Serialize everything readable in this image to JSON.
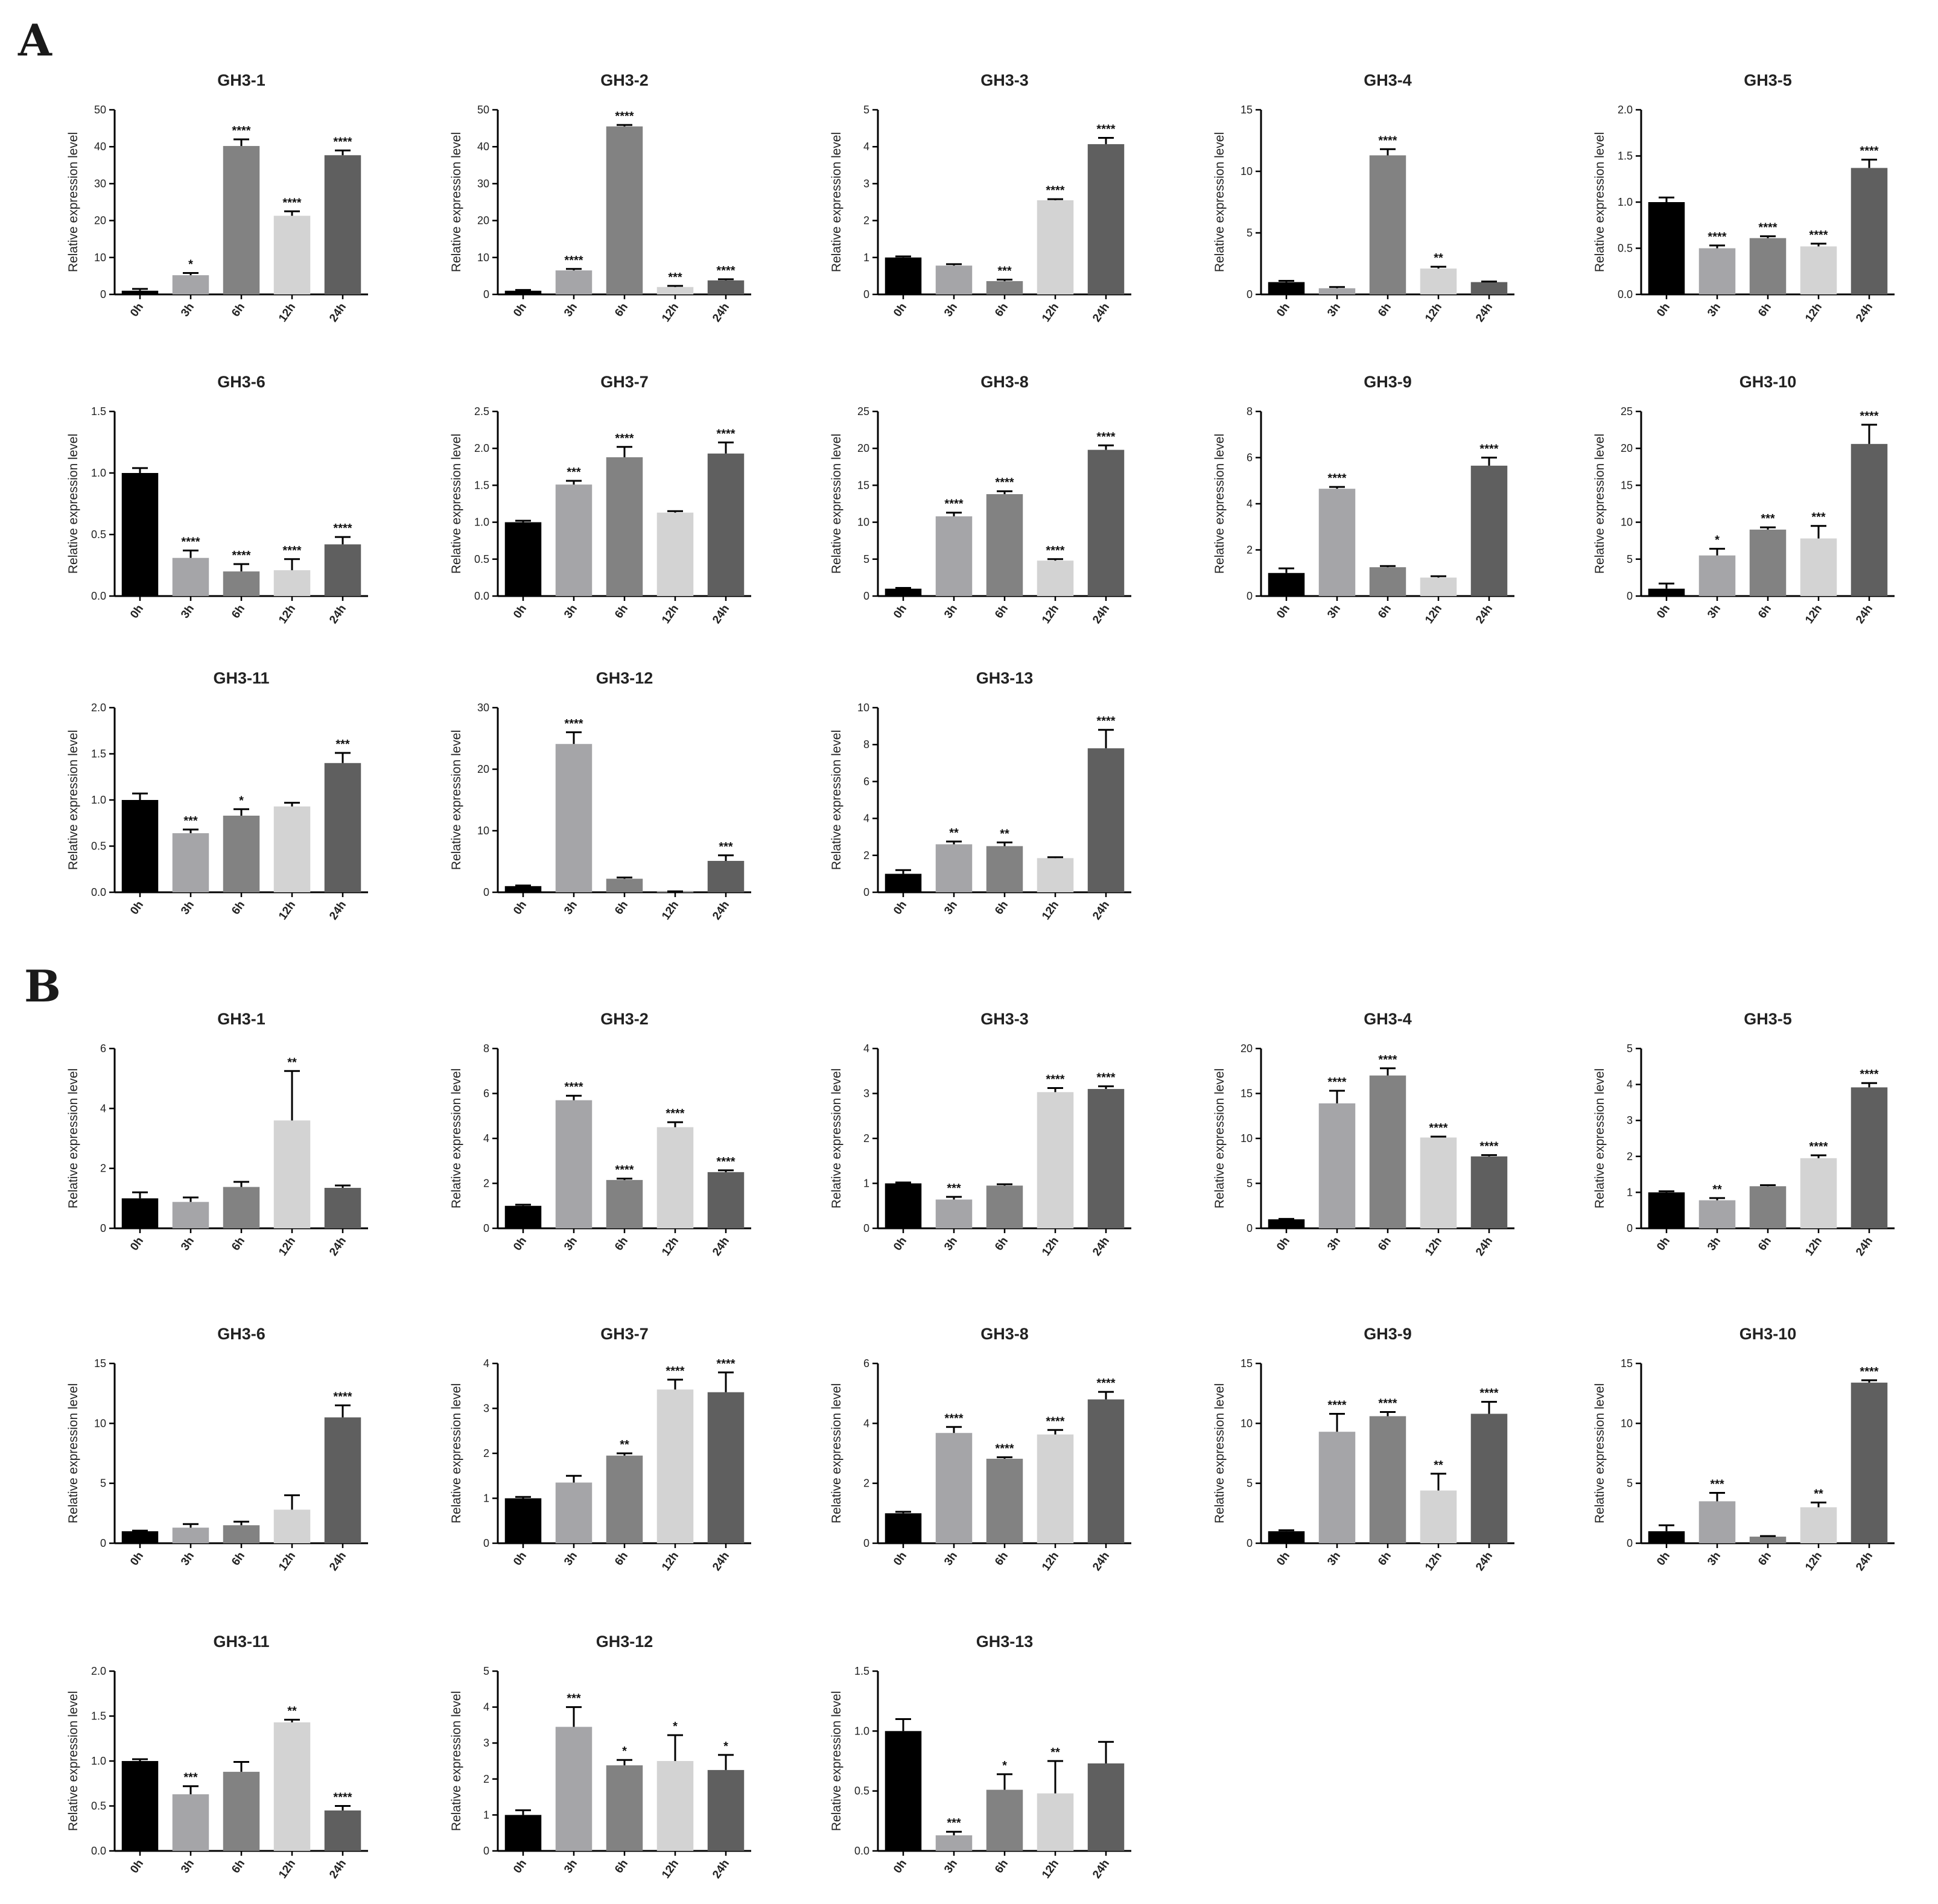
{
  "panel_labels": [
    "A",
    "B"
  ],
  "chart_data": [
    {
      "panel": "A",
      "type": "bar",
      "title": "GH3-1",
      "ylabel": "Relative expression level",
      "categories": [
        "0h",
        "3h",
        "6h",
        "12h",
        "24h"
      ],
      "ylim": [
        0,
        50
      ],
      "yticks": [
        0,
        10,
        20,
        30,
        40,
        50
      ],
      "values": [
        1.0,
        5.2,
        40.2,
        21.3,
        37.7
      ],
      "errors": [
        0.5,
        0.6,
        1.8,
        1.2,
        1.3
      ],
      "significance": [
        "",
        "*",
        "****",
        "****",
        "****"
      ]
    },
    {
      "panel": "A",
      "type": "bar",
      "title": "GH3-2",
      "ylabel": "Relative expression level",
      "categories": [
        "0h",
        "3h",
        "6h",
        "12h",
        "24h"
      ],
      "ylim": [
        0,
        50
      ],
      "yticks": [
        0,
        10,
        20,
        30,
        40,
        50
      ],
      "values": [
        1.0,
        6.5,
        45.5,
        2.0,
        3.8
      ],
      "errors": [
        0.2,
        0.4,
        0.4,
        0.3,
        0.3
      ],
      "significance": [
        "",
        "****",
        "****",
        "***",
        "****"
      ]
    },
    {
      "panel": "A",
      "type": "bar",
      "title": "GH3-3",
      "ylabel": "Relative expression level",
      "categories": [
        "0h",
        "3h",
        "6h",
        "12h",
        "24h"
      ],
      "ylim": [
        0,
        5
      ],
      "yticks": [
        0,
        1,
        2,
        3,
        4,
        5
      ],
      "values": [
        1.0,
        0.78,
        0.36,
        2.55,
        4.07
      ],
      "errors": [
        0.03,
        0.04,
        0.04,
        0.03,
        0.17
      ],
      "significance": [
        "",
        "",
        "***",
        "****",
        "****"
      ]
    },
    {
      "panel": "A",
      "type": "bar",
      "title": "GH3-4",
      "ylabel": "Relative expression level",
      "categories": [
        "0h",
        "3h",
        "6h",
        "12h",
        "24h"
      ],
      "ylim": [
        0,
        15
      ],
      "yticks": [
        0,
        5,
        10,
        15
      ],
      "values": [
        1.0,
        0.5,
        11.3,
        2.1,
        1.0
      ],
      "errors": [
        0.1,
        0.1,
        0.5,
        0.15,
        0.05
      ],
      "significance": [
        "",
        "",
        "****",
        "**",
        ""
      ]
    },
    {
      "panel": "A",
      "type": "bar",
      "title": "GH3-5",
      "ylabel": "Relative expression level",
      "categories": [
        "0h",
        "3h",
        "6h",
        "12h",
        "24h"
      ],
      "ylim": [
        0,
        2.0
      ],
      "yticks": [
        0,
        0.5,
        1.0,
        1.5,
        2.0
      ],
      "values": [
        1.0,
        0.5,
        0.61,
        0.52,
        1.37
      ],
      "errors": [
        0.05,
        0.03,
        0.02,
        0.03,
        0.09
      ],
      "significance": [
        "",
        "****",
        "****",
        "****",
        "****"
      ]
    },
    {
      "panel": "A",
      "type": "bar",
      "title": "GH3-6",
      "ylabel": "Relative expression level",
      "categories": [
        "0h",
        "3h",
        "6h",
        "12h",
        "24h"
      ],
      "ylim": [
        0,
        1.5
      ],
      "yticks": [
        0,
        0.5,
        1.0,
        1.5
      ],
      "values": [
        1.0,
        0.31,
        0.2,
        0.21,
        0.42
      ],
      "errors": [
        0.04,
        0.06,
        0.06,
        0.09,
        0.06
      ],
      "significance": [
        "",
        "****",
        "****",
        "****",
        "****"
      ]
    },
    {
      "panel": "A",
      "type": "bar",
      "title": "GH3-7",
      "ylabel": "Relative expression level",
      "categories": [
        "0h",
        "3h",
        "6h",
        "12h",
        "24h"
      ],
      "ylim": [
        0,
        2.5
      ],
      "yticks": [
        0,
        0.5,
        1.0,
        1.5,
        2.0,
        2.5
      ],
      "values": [
        1.0,
        1.51,
        1.88,
        1.13,
        1.93
      ],
      "errors": [
        0.02,
        0.05,
        0.14,
        0.02,
        0.15
      ],
      "significance": [
        "",
        "***",
        "****",
        "",
        "****"
      ]
    },
    {
      "panel": "A",
      "type": "bar",
      "title": "GH3-8",
      "ylabel": "Relative expression level",
      "categories": [
        "0h",
        "3h",
        "6h",
        "12h",
        "24h"
      ],
      "ylim": [
        0,
        25
      ],
      "yticks": [
        0,
        5,
        10,
        15,
        20,
        25
      ],
      "values": [
        1.0,
        10.8,
        13.8,
        4.8,
        19.8
      ],
      "errors": [
        0.1,
        0.5,
        0.4,
        0.2,
        0.6
      ],
      "significance": [
        "",
        "****",
        "****",
        "****",
        "****"
      ]
    },
    {
      "panel": "A",
      "type": "bar",
      "title": "GH3-9",
      "ylabel": "Relative expression level",
      "categories": [
        "0h",
        "3h",
        "6h",
        "12h",
        "24h"
      ],
      "ylim": [
        0,
        8
      ],
      "yticks": [
        0,
        2,
        4,
        6,
        8
      ],
      "values": [
        1.0,
        4.65,
        1.25,
        0.8,
        5.65
      ],
      "errors": [
        0.2,
        0.08,
        0.05,
        0.06,
        0.35
      ],
      "significance": [
        "",
        "****",
        "",
        "",
        "****"
      ]
    },
    {
      "panel": "A",
      "type": "bar",
      "title": "GH3-10",
      "ylabel": "Relative expression level",
      "categories": [
        "0h",
        "3h",
        "6h",
        "12h",
        "24h"
      ],
      "ylim": [
        0,
        25
      ],
      "yticks": [
        0,
        5,
        10,
        15,
        20,
        25
      ],
      "values": [
        1.0,
        5.5,
        9.0,
        7.8,
        20.6
      ],
      "errors": [
        0.7,
        0.9,
        0.3,
        1.7,
        2.6
      ],
      "significance": [
        "",
        "*",
        "***",
        "***",
        "****"
      ]
    },
    {
      "panel": "A",
      "type": "bar",
      "title": "GH3-11",
      "ylabel": "Relative expression level",
      "categories": [
        "0h",
        "3h",
        "6h",
        "12h",
        "24h"
      ],
      "ylim": [
        0,
        2.0
      ],
      "yticks": [
        0,
        0.5,
        1.0,
        1.5,
        2.0
      ],
      "values": [
        1.0,
        0.64,
        0.83,
        0.93,
        1.4
      ],
      "errors": [
        0.07,
        0.04,
        0.07,
        0.04,
        0.11
      ],
      "significance": [
        "",
        "***",
        "*",
        "",
        "***"
      ]
    },
    {
      "panel": "A",
      "type": "bar",
      "title": "GH3-12",
      "ylabel": "Relative expression level",
      "categories": [
        "0h",
        "3h",
        "6h",
        "12h",
        "24h"
      ],
      "ylim": [
        0,
        30
      ],
      "yticks": [
        0,
        10,
        20,
        30
      ],
      "values": [
        1.0,
        24.1,
        2.2,
        0.1,
        5.1
      ],
      "errors": [
        0.1,
        1.9,
        0.2,
        0.05,
        0.9
      ],
      "significance": [
        "",
        "****",
        "",
        "",
        "***"
      ]
    },
    {
      "panel": "A",
      "type": "bar",
      "title": "GH3-13",
      "ylabel": "Relative expression level",
      "categories": [
        "0h",
        "3h",
        "6h",
        "12h",
        "24h"
      ],
      "ylim": [
        0,
        10
      ],
      "yticks": [
        0,
        2,
        4,
        6,
        8,
        10
      ],
      "values": [
        1.0,
        2.6,
        2.5,
        1.85,
        7.8
      ],
      "errors": [
        0.2,
        0.15,
        0.2,
        0.05,
        1.0
      ],
      "significance": [
        "",
        "**",
        "**",
        "",
        "****"
      ]
    },
    {
      "panel": "B",
      "type": "bar",
      "title": "GH3-1",
      "ylabel": "Relative expression level",
      "categories": [
        "0h",
        "3h",
        "6h",
        "12h",
        "24h"
      ],
      "ylim": [
        0,
        6
      ],
      "yticks": [
        0,
        2,
        4,
        6
      ],
      "values": [
        1.0,
        0.88,
        1.38,
        3.6,
        1.35
      ],
      "errors": [
        0.2,
        0.15,
        0.17,
        1.65,
        0.08
      ],
      "significance": [
        "",
        "",
        "",
        "**",
        ""
      ]
    },
    {
      "panel": "B",
      "type": "bar",
      "title": "GH3-2",
      "ylabel": "Relative expression level",
      "categories": [
        "0h",
        "3h",
        "6h",
        "12h",
        "24h"
      ],
      "ylim": [
        0,
        8
      ],
      "yticks": [
        0,
        2,
        4,
        6,
        8
      ],
      "values": [
        1.0,
        5.7,
        2.15,
        4.5,
        2.5
      ],
      "errors": [
        0.05,
        0.2,
        0.06,
        0.22,
        0.08
      ],
      "significance": [
        "",
        "****",
        "****",
        "****",
        "****"
      ]
    },
    {
      "panel": "B",
      "type": "bar",
      "title": "GH3-3",
      "ylabel": "Relative expression level",
      "categories": [
        "0h",
        "3h",
        "6h",
        "12h",
        "24h"
      ],
      "ylim": [
        0,
        4
      ],
      "yticks": [
        0,
        1,
        2,
        3,
        4
      ],
      "values": [
        1.0,
        0.64,
        0.95,
        3.03,
        3.1
      ],
      "errors": [
        0.02,
        0.06,
        0.03,
        0.09,
        0.06
      ],
      "significance": [
        "",
        "***",
        "",
        "****",
        "****"
      ]
    },
    {
      "panel": "B",
      "type": "bar",
      "title": "GH3-4",
      "ylabel": "Relative expression level",
      "categories": [
        "0h",
        "3h",
        "6h",
        "12h",
        "24h"
      ],
      "ylim": [
        0,
        20
      ],
      "yticks": [
        0,
        5,
        10,
        15,
        20
      ],
      "values": [
        1.0,
        13.9,
        17.0,
        10.1,
        8.0
      ],
      "errors": [
        0.05,
        1.4,
        0.8,
        0.1,
        0.15
      ],
      "significance": [
        "",
        "****",
        "****",
        "****",
        "****"
      ]
    },
    {
      "panel": "B",
      "type": "bar",
      "title": "GH3-5",
      "ylabel": "Relative expression level",
      "categories": [
        "0h",
        "3h",
        "6h",
        "12h",
        "24h"
      ],
      "ylim": [
        0,
        5
      ],
      "yticks": [
        0,
        1,
        2,
        3,
        4,
        5
      ],
      "values": [
        1.0,
        0.78,
        1.17,
        1.95,
        3.92
      ],
      "errors": [
        0.03,
        0.06,
        0.03,
        0.08,
        0.12
      ],
      "significance": [
        "",
        "**",
        "",
        "****",
        "****"
      ]
    },
    {
      "panel": "B",
      "type": "bar",
      "title": "GH3-6",
      "ylabel": "Relative expression level",
      "categories": [
        "0h",
        "3h",
        "6h",
        "12h",
        "24h"
      ],
      "ylim": [
        0,
        15
      ],
      "yticks": [
        0,
        5,
        10,
        15
      ],
      "values": [
        1.0,
        1.3,
        1.5,
        2.8,
        10.5
      ],
      "errors": [
        0.05,
        0.3,
        0.3,
        1.2,
        1.0
      ],
      "significance": [
        "",
        "",
        "",
        "",
        "****"
      ]
    },
    {
      "panel": "B",
      "type": "bar",
      "title": "GH3-7",
      "ylabel": "Relative expression level",
      "categories": [
        "0h",
        "3h",
        "6h",
        "12h",
        "24h"
      ],
      "ylim": [
        0,
        4
      ],
      "yticks": [
        0,
        1,
        2,
        3,
        4
      ],
      "values": [
        1.0,
        1.35,
        1.95,
        3.42,
        3.36
      ],
      "errors": [
        0.03,
        0.15,
        0.05,
        0.22,
        0.44
      ],
      "significance": [
        "",
        "",
        "**",
        "****",
        "****"
      ]
    },
    {
      "panel": "B",
      "type": "bar",
      "title": "GH3-8",
      "ylabel": "Relative expression level",
      "categories": [
        "0h",
        "3h",
        "6h",
        "12h",
        "24h"
      ],
      "ylim": [
        0,
        6
      ],
      "yticks": [
        0,
        2,
        4,
        6
      ],
      "values": [
        1.0,
        3.68,
        2.82,
        3.63,
        4.8
      ],
      "errors": [
        0.05,
        0.2,
        0.05,
        0.15,
        0.25
      ],
      "significance": [
        "",
        "****",
        "****",
        "****",
        "****"
      ]
    },
    {
      "panel": "B",
      "type": "bar",
      "title": "GH3-9",
      "ylabel": "Relative expression level",
      "categories": [
        "0h",
        "3h",
        "6h",
        "12h",
        "24h"
      ],
      "ylim": [
        0,
        15
      ],
      "yticks": [
        0,
        5,
        10,
        15
      ],
      "values": [
        1.0,
        9.3,
        10.6,
        4.4,
        10.8
      ],
      "errors": [
        0.08,
        1.5,
        0.35,
        1.4,
        1.0
      ],
      "significance": [
        "",
        "****",
        "****",
        "**",
        "****"
      ]
    },
    {
      "panel": "B",
      "type": "bar",
      "title": "GH3-10",
      "ylabel": "Relative expression level",
      "categories": [
        "0h",
        "3h",
        "6h",
        "12h",
        "24h"
      ],
      "ylim": [
        0,
        15
      ],
      "yticks": [
        0,
        5,
        10,
        15
      ],
      "values": [
        1.0,
        3.5,
        0.55,
        3.0,
        13.4
      ],
      "errors": [
        0.5,
        0.7,
        0.05,
        0.4,
        0.2
      ],
      "significance": [
        "",
        "***",
        "",
        "**",
        "****"
      ]
    },
    {
      "panel": "B",
      "type": "bar",
      "title": "GH3-11",
      "ylabel": "Relative expression level",
      "categories": [
        "0h",
        "3h",
        "6h",
        "12h",
        "24h"
      ],
      "ylim": [
        0,
        2.0
      ],
      "yticks": [
        0,
        0.5,
        1.0,
        1.5,
        2.0
      ],
      "values": [
        1.0,
        0.63,
        0.88,
        1.43,
        0.45
      ],
      "errors": [
        0.02,
        0.09,
        0.11,
        0.03,
        0.05
      ],
      "significance": [
        "",
        "***",
        "",
        "**",
        "****"
      ]
    },
    {
      "panel": "B",
      "type": "bar",
      "title": "GH3-12",
      "ylabel": "Relative expression level",
      "categories": [
        "0h",
        "3h",
        "6h",
        "12h",
        "24h"
      ],
      "ylim": [
        0,
        5
      ],
      "yticks": [
        0,
        1,
        2,
        3,
        4,
        5
      ],
      "values": [
        1.0,
        3.45,
        2.38,
        2.5,
        2.25
      ],
      "errors": [
        0.13,
        0.55,
        0.15,
        0.72,
        0.42
      ],
      "significance": [
        "",
        "***",
        "*",
        "*",
        "*"
      ]
    },
    {
      "panel": "B",
      "type": "bar",
      "title": "GH3-13",
      "ylabel": "Relative expression level",
      "categories": [
        "0h",
        "3h",
        "6h",
        "12h",
        "24h"
      ],
      "ylim": [
        0,
        1.5
      ],
      "yticks": [
        0,
        0.5,
        1.0,
        1.5
      ],
      "values": [
        1.0,
        0.13,
        0.51,
        0.48,
        0.73
      ],
      "errors": [
        0.1,
        0.03,
        0.13,
        0.27,
        0.18
      ],
      "significance": [
        "",
        "***",
        "*",
        "**",
        ""
      ]
    }
  ],
  "bar_colors": [
    "#000000",
    "#a5a5a8",
    "#828282",
    "#d3d3d3",
    "#5f5f5f"
  ]
}
